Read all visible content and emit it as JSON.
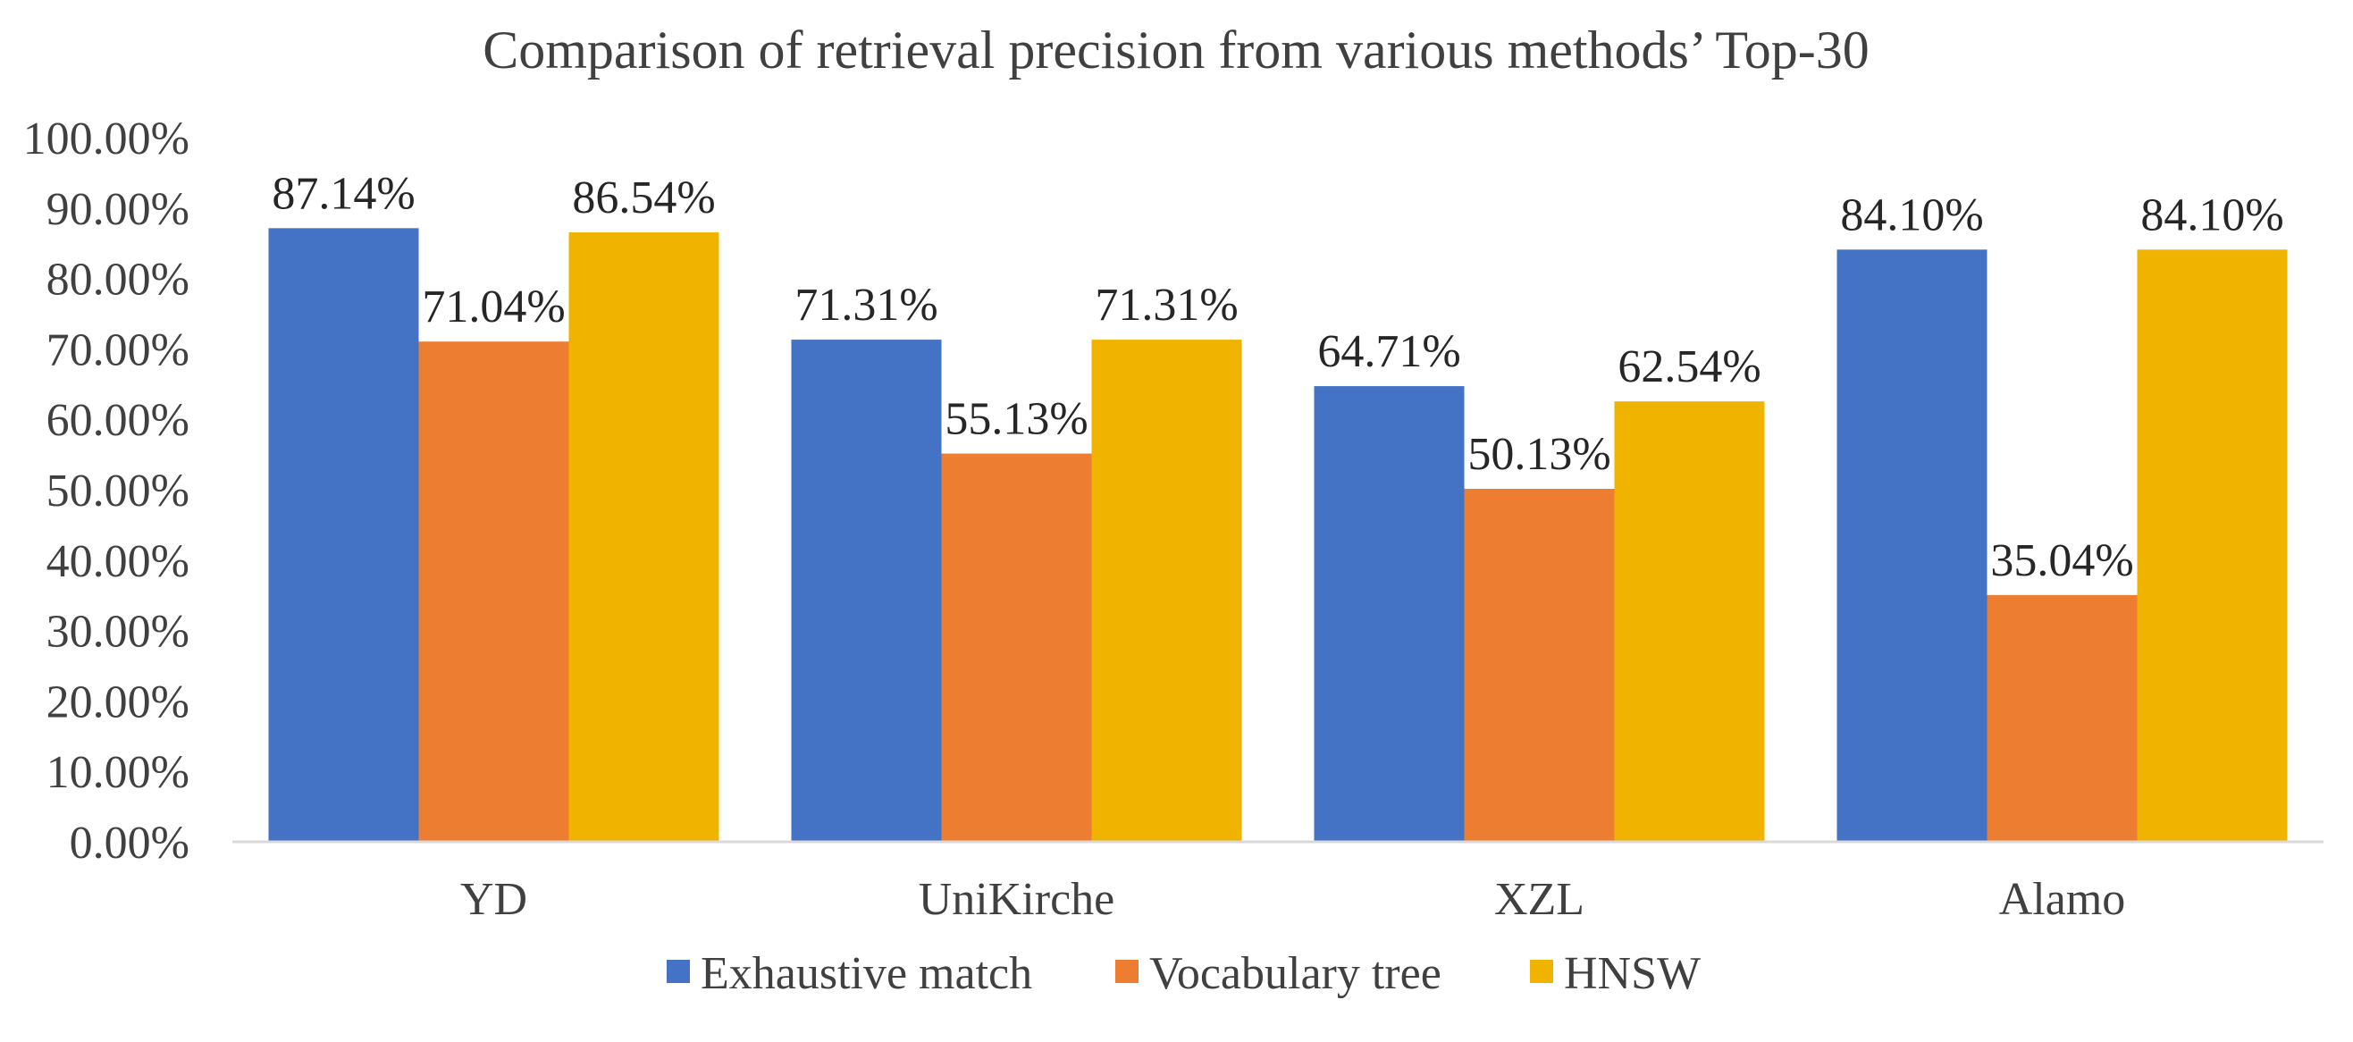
{
  "chart_data": {
    "type": "bar",
    "title": "Comparison of retrieval precision from various methods’ Top-30",
    "xlabel": "",
    "ylabel": "",
    "categories": [
      "YD",
      "UniKirche",
      "XZL",
      "Alamo"
    ],
    "series": [
      {
        "name": "Exhaustive match",
        "color": "#4472C4",
        "values": [
          87.14,
          71.31,
          64.71,
          84.1
        ],
        "labels": [
          "87.14%",
          "71.31%",
          "64.71%",
          "84.10%"
        ]
      },
      {
        "name": "Vocabulary tree",
        "color": "#ED7D31",
        "values": [
          71.04,
          55.13,
          50.13,
          35.04
        ],
        "labels": [
          "71.04%",
          "55.13%",
          "50.13%",
          "35.04%"
        ]
      },
      {
        "name": "HNSW",
        "color": "#F0B400",
        "values": [
          86.54,
          71.31,
          62.54,
          84.1
        ],
        "labels": [
          "86.54%",
          "71.31%",
          "62.54%",
          "84.10%"
        ]
      }
    ],
    "ylim": [
      0,
      100
    ],
    "yticks": [
      0,
      10,
      20,
      30,
      40,
      50,
      60,
      70,
      80,
      90,
      100
    ],
    "ytick_labels": [
      "0.00%",
      "10.00%",
      "20.00%",
      "30.00%",
      "40.00%",
      "50.00%",
      "60.00%",
      "70.00%",
      "80.00%",
      "90.00%",
      "100.00%"
    ],
    "grid": false,
    "legend_position": "bottom"
  }
}
